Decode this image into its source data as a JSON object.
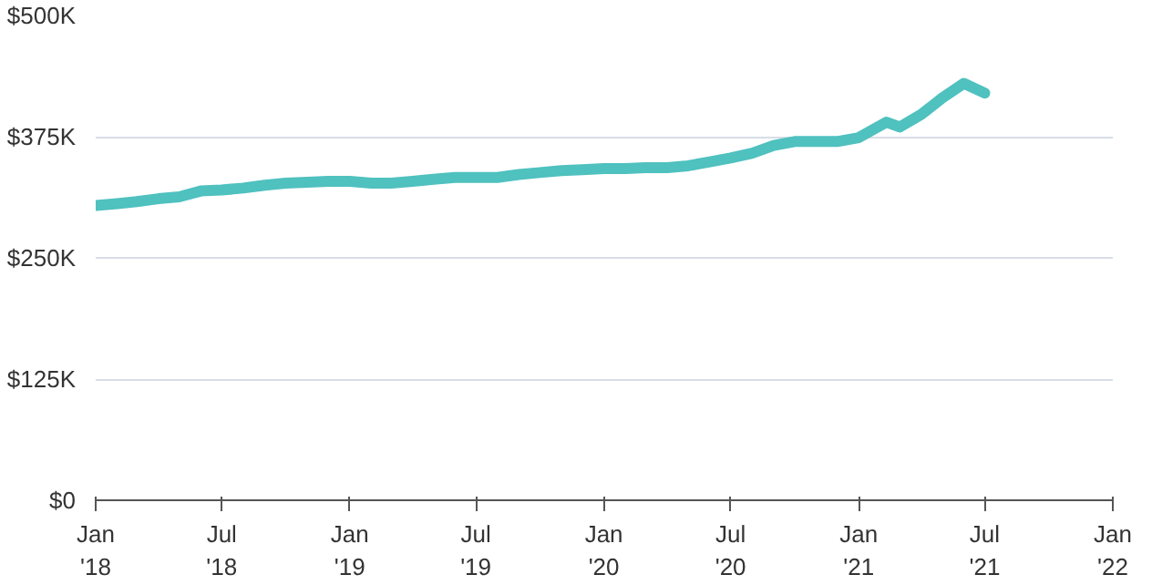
{
  "chart_data": {
    "type": "line",
    "grid": "y",
    "line_style": "solid",
    "x": [
      "2018-01",
      "2018-02",
      "2018-03",
      "2018-04",
      "2018-05",
      "2018-06",
      "2018-07",
      "2018-08",
      "2018-09",
      "2018-10",
      "2018-11",
      "2018-12",
      "2019-01",
      "2019-02",
      "2019-03",
      "2019-04",
      "2019-05",
      "2019-06",
      "2019-07",
      "2019-08",
      "2019-09",
      "2019-10",
      "2019-11",
      "2019-12",
      "2020-01",
      "2020-02",
      "2020-03",
      "2020-04",
      "2020-05",
      "2020-06",
      "2020-07",
      "2020-08",
      "2020-09",
      "2020-10",
      "2020-11",
      "2020-12",
      "2021-01",
      "2021-02-10",
      "2021-03",
      "2021-04",
      "2021-05",
      "2021-06",
      "2021-07"
    ],
    "series": [
      {
        "color": "#4fc1bf",
        "values": [
          304,
          306,
          308,
          311,
          313,
          319,
          320,
          322,
          325,
          327,
          328,
          329,
          329,
          327,
          327,
          329,
          331,
          333,
          333,
          333,
          336,
          338,
          340,
          341,
          342,
          342,
          343,
          343,
          345,
          349,
          353,
          358,
          366,
          370,
          370,
          370,
          374,
          390,
          385,
          398,
          415,
          430,
          420
        ]
      }
    ],
    "xlim": [
      "2018-01",
      "2022-01"
    ],
    "xticks": [
      {
        "value": "2018-01",
        "label": "Jan\n'18"
      },
      {
        "value": "2018-07",
        "label": "Jul\n'18"
      },
      {
        "value": "2019-01",
        "label": "Jan\n'19"
      },
      {
        "value": "2019-07",
        "label": "Jul\n'19"
      },
      {
        "value": "2020-01",
        "label": "Jan\n'20"
      },
      {
        "value": "2020-07",
        "label": "Jul\n'20"
      },
      {
        "value": "2021-01",
        "label": "Jan\n'21"
      },
      {
        "value": "2021-07",
        "label": "Jul\n'21"
      },
      {
        "value": "2022-01",
        "label": "Jan\n'22"
      }
    ],
    "ylim": [
      0,
      500
    ],
    "yticks": [
      {
        "value": 0,
        "label": "$0"
      },
      {
        "value": 125,
        "label": "$125K"
      },
      {
        "value": 250,
        "label": "$250K"
      },
      {
        "value": 375,
        "label": "$375K"
      },
      {
        "value": 500,
        "label": "$500K"
      }
    ]
  }
}
